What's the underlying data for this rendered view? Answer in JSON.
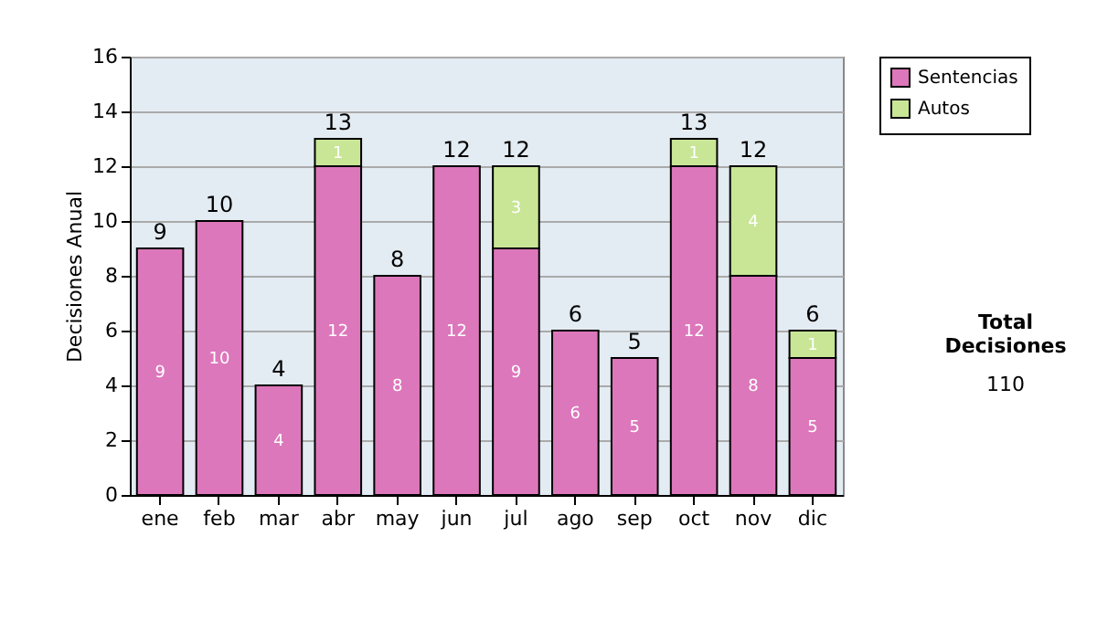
{
  "chart_data": {
    "type": "bar",
    "stacked": true,
    "ylabel": "Decisiones Anual",
    "categories": [
      "ene",
      "feb",
      "mar",
      "abr",
      "may",
      "jun",
      "jul",
      "ago",
      "sep",
      "oct",
      "nov",
      "dic"
    ],
    "series": [
      {
        "name": "Sentencias",
        "color": "#dd77bb",
        "values": [
          9,
          10,
          4,
          12,
          8,
          12,
          9,
          6,
          5,
          12,
          8,
          5
        ],
        "value_labels": [
          "9",
          "10",
          "4",
          "12",
          "8",
          "12",
          "9",
          "6",
          "5",
          "12",
          "8",
          "5"
        ]
      },
      {
        "name": "Autos",
        "color": "#c8e696",
        "values": [
          0,
          0,
          0,
          1,
          0,
          0,
          3,
          0,
          0,
          1,
          4,
          1
        ],
        "value_labels": [
          null,
          null,
          null,
          "1",
          null,
          null,
          "3",
          null,
          null,
          "1",
          "4",
          "1"
        ]
      }
    ],
    "totals": [
      "9",
      "10",
      "4",
      "13",
      "8",
      "12",
      "12",
      "6",
      "5",
      "13",
      "12",
      "6"
    ],
    "ylim": [
      0,
      16
    ],
    "yticks": [
      0,
      2,
      4,
      6,
      8,
      10,
      12,
      14,
      16
    ],
    "grid": "y",
    "legend": "right",
    "annotations": [
      "Total Decisiones",
      "110"
    ]
  }
}
